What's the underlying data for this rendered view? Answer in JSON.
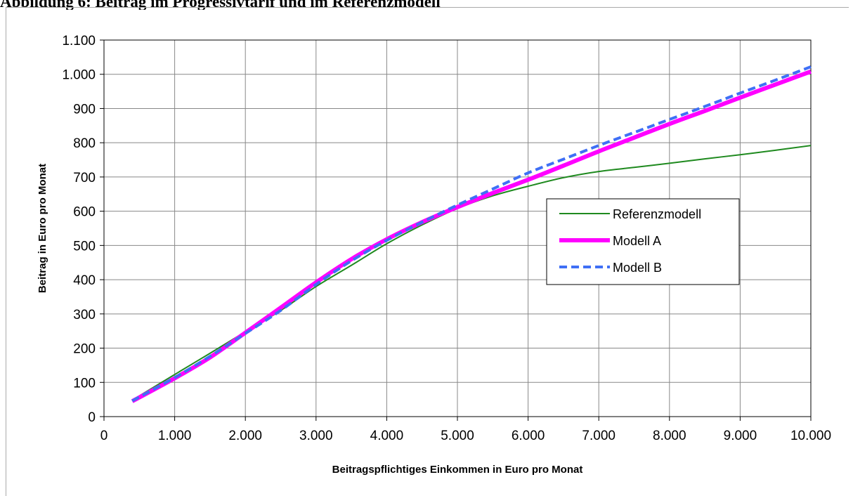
{
  "page": {
    "heading": "Abbildung 6: Beitrag im Progressivtarif und im Referenzmodell"
  },
  "chart_data": {
    "type": "line",
    "title": "",
    "xlabel": "Beitragspflichtiges Einkommen in Euro pro Monat",
    "ylabel": "Beitrag in Euro pro Monat",
    "xlim": [
      0,
      10000
    ],
    "ylim": [
      0,
      1100
    ],
    "x_ticks": [
      0,
      1000,
      2000,
      3000,
      4000,
      5000,
      6000,
      7000,
      8000,
      9000,
      10000
    ],
    "x_tick_labels": [
      "0",
      "1.000",
      "2.000",
      "3.000",
      "4.000",
      "5.000",
      "6.000",
      "7.000",
      "8.000",
      "9.000",
      "10.000"
    ],
    "y_ticks": [
      0,
      100,
      200,
      300,
      400,
      500,
      600,
      700,
      800,
      900,
      1000,
      1100
    ],
    "y_tick_labels": [
      "0",
      "100",
      "200",
      "300",
      "400",
      "500",
      "600",
      "700",
      "800",
      "900",
      "1.000",
      "1.100"
    ],
    "grid": true,
    "legend_position": "right",
    "series": [
      {
        "name": "Referenzmodell",
        "color": "#1f8a1f",
        "style": "solid-thin",
        "points": [
          [
            400,
            48
          ],
          [
            1000,
            123
          ],
          [
            1500,
            185
          ],
          [
            2000,
            248
          ],
          [
            2500,
            310
          ],
          [
            3000,
            380
          ],
          [
            3500,
            442
          ],
          [
            4000,
            505
          ],
          [
            4500,
            560
          ],
          [
            5000,
            608
          ],
          [
            5500,
            645
          ],
          [
            6000,
            673
          ],
          [
            6500,
            698
          ],
          [
            7000,
            716
          ],
          [
            7500,
            728
          ],
          [
            8000,
            740
          ],
          [
            8500,
            753
          ],
          [
            9000,
            765
          ],
          [
            9500,
            778
          ],
          [
            10000,
            792
          ]
        ]
      },
      {
        "name": "Modell A",
        "color": "#ff00ff",
        "style": "solid-thick",
        "points": [
          [
            400,
            45
          ],
          [
            1000,
            112
          ],
          [
            1500,
            173
          ],
          [
            2000,
            245
          ],
          [
            2500,
            318
          ],
          [
            3000,
            392
          ],
          [
            3500,
            460
          ],
          [
            4000,
            518
          ],
          [
            4500,
            568
          ],
          [
            5000,
            612
          ],
          [
            5500,
            653
          ],
          [
            6000,
            692
          ],
          [
            6500,
            733
          ],
          [
            7000,
            775
          ],
          [
            7500,
            815
          ],
          [
            8000,
            855
          ],
          [
            8500,
            893
          ],
          [
            9000,
            932
          ],
          [
            9500,
            970
          ],
          [
            10000,
            1008
          ]
        ]
      },
      {
        "name": "Modell B",
        "color": "#3f6ff5",
        "style": "dashed",
        "points": [
          [
            400,
            46
          ],
          [
            1000,
            114
          ],
          [
            1500,
            176
          ],
          [
            2000,
            243
          ],
          [
            2500,
            310
          ],
          [
            3000,
            386
          ],
          [
            3500,
            455
          ],
          [
            4000,
            515
          ],
          [
            4500,
            568
          ],
          [
            5000,
            618
          ],
          [
            5500,
            665
          ],
          [
            6000,
            712
          ],
          [
            6500,
            752
          ],
          [
            7000,
            792
          ],
          [
            7500,
            830
          ],
          [
            8000,
            868
          ],
          [
            8500,
            906
          ],
          [
            9000,
            945
          ],
          [
            9500,
            983
          ],
          [
            10000,
            1022
          ]
        ]
      }
    ]
  }
}
